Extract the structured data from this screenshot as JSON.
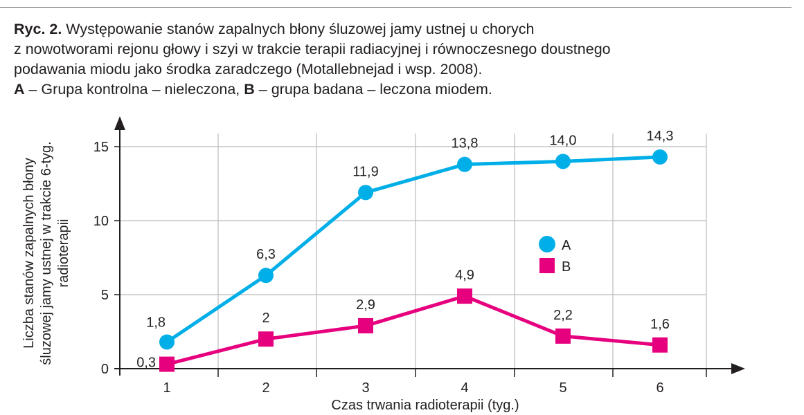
{
  "caption": {
    "label": "Ryc. 2.",
    "line1": " Występowanie stanów zapalnych błony śluzowej jamy ustnej u chorych",
    "line2": "z nowotworami rejonu głowy i szyi w trakcie terapii radiacyjnej i równoczesnego doustnego",
    "line3": "podawania miodu jako środka zaradczego (Motallebnejad i wsp. 2008).",
    "a_label": "A",
    "a_text": " – Grupa kontrolna – nieleczona, ",
    "b_label": "B",
    "b_text": " – grupa badana – leczona miodem."
  },
  "chart_data": {
    "type": "line",
    "xlabel": "Czas trwania radioterapii (tyg.)",
    "ylabel": [
      "Liczba stanów zapalnych błony",
      "śluzowej jamy ustnej w trakcie 6-tyg.",
      "radioterapii"
    ],
    "categories": [
      "1",
      "2",
      "3",
      "4",
      "5",
      "6"
    ],
    "yticks": [
      "0",
      "5",
      "10",
      "15"
    ],
    "ylim": [
      0,
      15
    ],
    "grid": true,
    "legend_placement": "center-right",
    "series": [
      {
        "name": "A",
        "marker": "circle",
        "color": "#00aee8",
        "values": [
          1.8,
          6.3,
          11.9,
          13.8,
          14.0,
          14.3
        ],
        "labels": [
          "1,8",
          "6,3",
          "11,9",
          "13,8",
          "14,0",
          "14,3"
        ]
      },
      {
        "name": "B",
        "marker": "square",
        "color": "#e6007e",
        "values": [
          0.3,
          2,
          2.9,
          4.9,
          2.2,
          1.6
        ],
        "labels": [
          "0,3",
          "2",
          "2,9",
          "4,9",
          "2,2",
          "1,6"
        ]
      }
    ]
  }
}
